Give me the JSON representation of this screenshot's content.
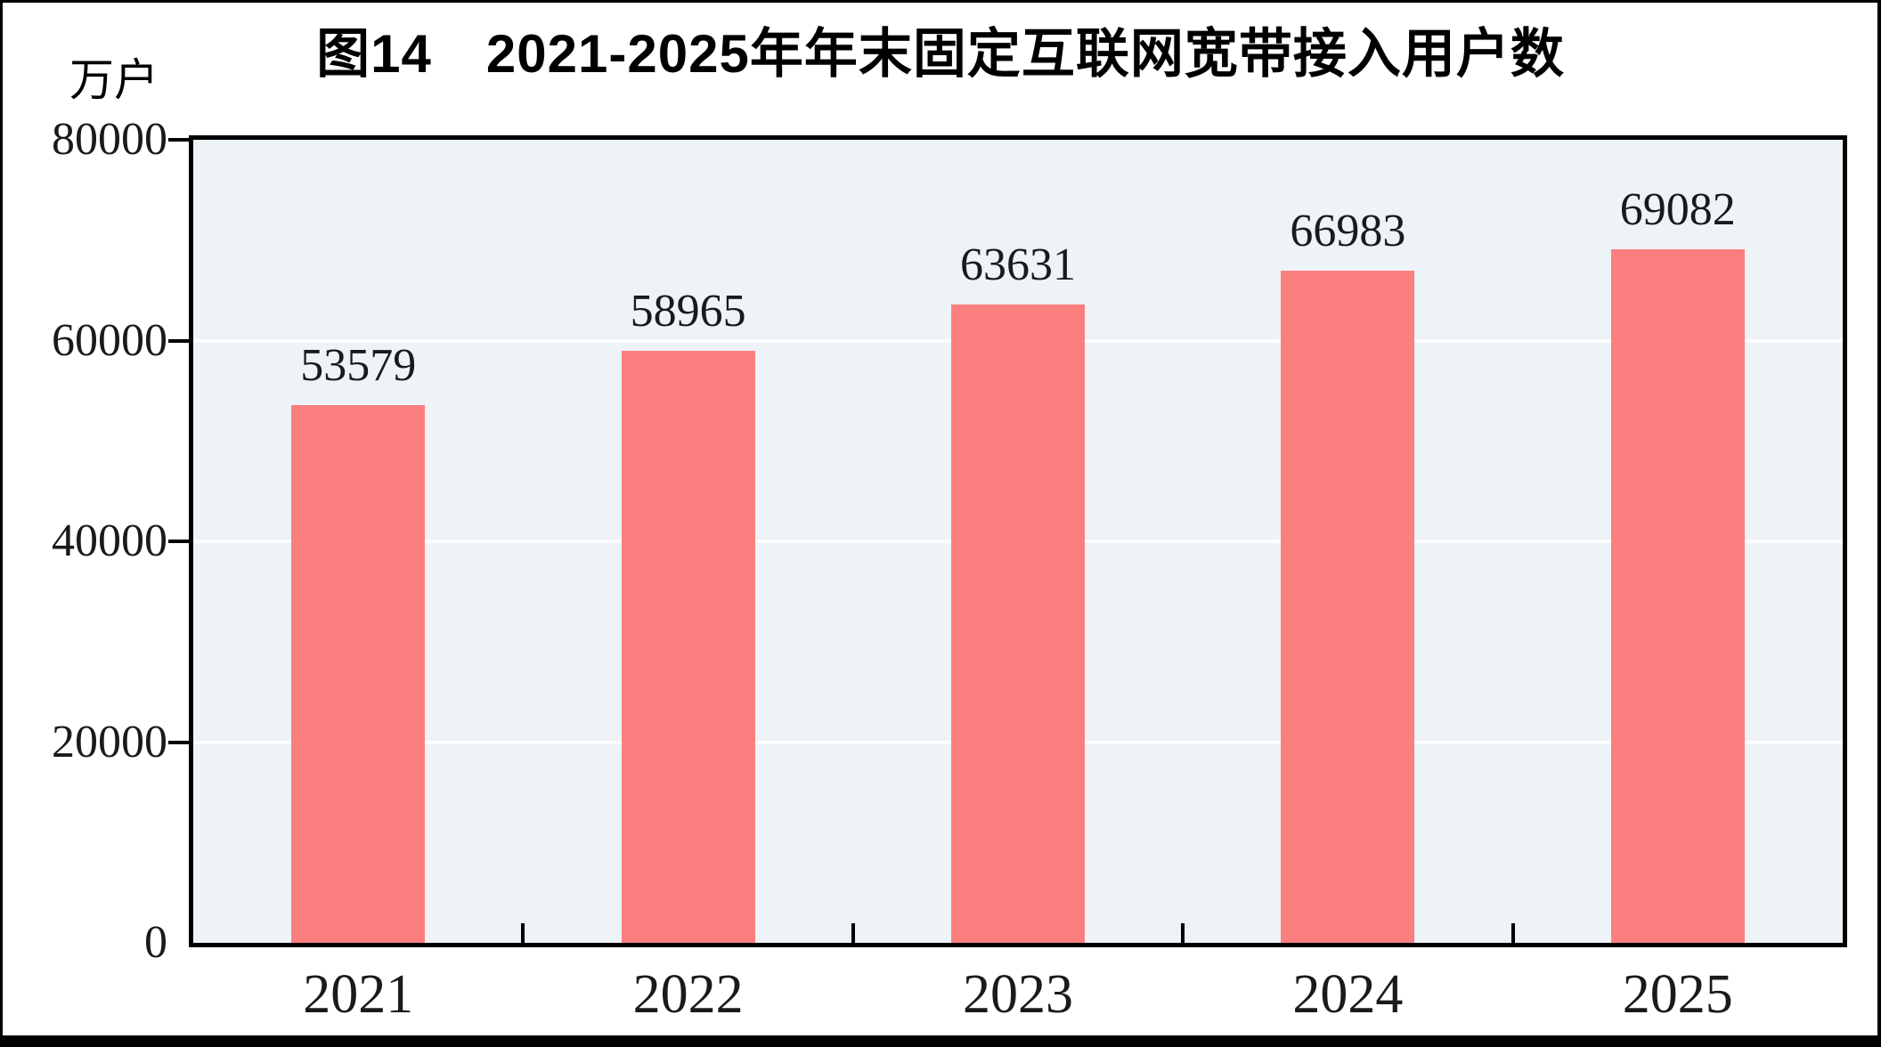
{
  "chart_data": {
    "type": "bar",
    "title": "图14　2021-2025年年末固定互联网宽带接入用户数",
    "ylabel": "万户",
    "xlabel": "",
    "categories": [
      "2021",
      "2022",
      "2023",
      "2024",
      "2025"
    ],
    "values": [
      53579,
      58965,
      63631,
      66983,
      69082
    ],
    "data_label_texts": [
      "53579",
      "58965",
      "63631",
      "66983",
      "69082"
    ],
    "ylim": [
      0,
      80000
    ],
    "y_ticks": [
      0,
      20000,
      40000,
      60000,
      80000
    ],
    "y_tick_labels": [
      "0",
      "20000",
      "40000",
      "60000",
      "80000"
    ],
    "grid": true,
    "legend": false,
    "colors": {
      "bar": "#FB7F7E",
      "plot_background": "#EDF3F7",
      "gridline": "#FFFFFF",
      "axis": "#000000",
      "text": "#1A1A1A"
    }
  }
}
